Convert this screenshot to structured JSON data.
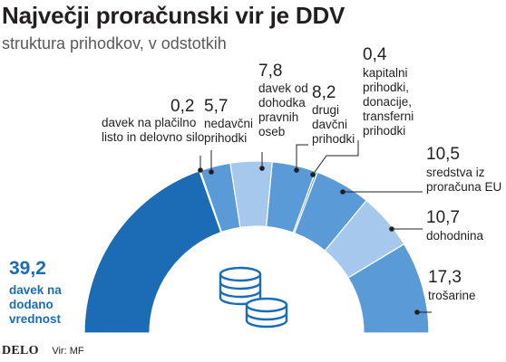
{
  "title": "Največji proračunski vir je DDV",
  "subtitle": "struktura prihodkov, v odstotkih",
  "brand": "DELO",
  "source": "Vir: MF",
  "colors": {
    "dark": "#1b6cb5",
    "medium": "#5a9ad6",
    "light": "#a6c8ec",
    "text": "#231f20"
  },
  "icon": "coins-icon",
  "chart_data": {
    "type": "donut",
    "series": [
      {
        "value": "39,2",
        "num": 39.2,
        "label": [
          "davek na",
          "dodano",
          "vrednost"
        ],
        "color": "dark"
      },
      {
        "value": "0,2",
        "num": 0.2,
        "label": [
          "davek na plačilno",
          "listo in delovno silo"
        ],
        "color": "medium"
      },
      {
        "value": "5,7",
        "num": 5.7,
        "label": [
          "nedavčni",
          "prihodki"
        ],
        "color": "medium"
      },
      {
        "value": "7,8",
        "num": 7.8,
        "label": [
          "davek od",
          "dohodka",
          "pravnih",
          "oseb"
        ],
        "color": "light"
      },
      {
        "value": "8,2",
        "num": 8.2,
        "label": [
          "drugi",
          "davčni",
          "prihodki"
        ],
        "color": "medium"
      },
      {
        "value": "0,4",
        "num": 0.4,
        "label": [
          "kapitalni",
          "prihodki,",
          "donacije,",
          "transferni",
          "prihodki"
        ],
        "color": "medium"
      },
      {
        "value": "10,5",
        "num": 10.5,
        "label": [
          "sredstva iz",
          "proračuna EU"
        ],
        "color": "medium"
      },
      {
        "value": "10,7",
        "num": 10.7,
        "label": [
          "dohodnina"
        ],
        "color": "light"
      },
      {
        "value": "17,3",
        "num": 17.3,
        "label": [
          "trošarine"
        ],
        "color": "medium"
      }
    ]
  }
}
